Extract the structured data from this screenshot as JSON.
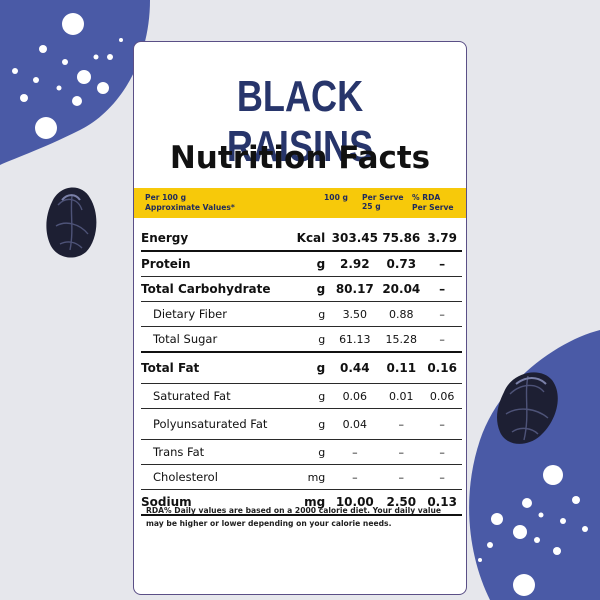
{
  "title": "BLACK RAISINS",
  "subtitle": "Nutrition Facts",
  "header": {
    "col1_line1": "Per 100 g",
    "col1_line2": "Approximate Values*",
    "col2": "100 g",
    "col3_line1": "Per Serve",
    "col3_line2": "25 g",
    "col4_line1": "% RDA",
    "col4_line2": "Per Serve"
  },
  "rows": [
    {
      "name": "Energy",
      "unit": "Kcal",
      "v100": "303.45",
      "serve": "75.86",
      "rda": "3.79"
    },
    {
      "name": "Protein",
      "unit": "g",
      "v100": "2.92",
      "serve": "0.73",
      "rda": "–"
    },
    {
      "name": "Total Carbohydrate",
      "unit": "g",
      "v100": "80.17",
      "serve": "20.04",
      "rda": "–"
    },
    {
      "name": "Dietary Fiber",
      "unit": "g",
      "v100": "3.50",
      "serve": "0.88",
      "rda": "–"
    },
    {
      "name": "Total Sugar",
      "unit": "g",
      "v100": "61.13",
      "serve": "15.28",
      "rda": "–"
    },
    {
      "name": "Total Fat",
      "unit": "g",
      "v100": "0.44",
      "serve": "0.11",
      "rda": "0.16"
    },
    {
      "name": "Saturated Fat",
      "unit": "g",
      "v100": "0.06",
      "serve": "0.01",
      "rda": "0.06"
    },
    {
      "name": "Polyunsaturated Fat",
      "unit": "g",
      "v100": "0.04",
      "serve": "–",
      "rda": "–"
    },
    {
      "name": "Trans Fat",
      "unit": "g",
      "v100": "–",
      "serve": "–",
      "rda": "–"
    },
    {
      "name": "Cholesterol",
      "unit": "mg",
      "v100": "–",
      "serve": "–",
      "rda": "–"
    },
    {
      "name": "Sodium",
      "unit": "mg",
      "v100": "10.00",
      "serve": "2.50",
      "rda": "0.13"
    }
  ],
  "footnote": "RDA% Daily values are based on a 2000 calorie diet. Your daily value may be higher or lower depending on your calorie needs.",
  "colors": {
    "navy": "#27356b",
    "yellow": "#f7c90a",
    "blob": "#4a5aa6",
    "background": "#e6e7ec"
  }
}
